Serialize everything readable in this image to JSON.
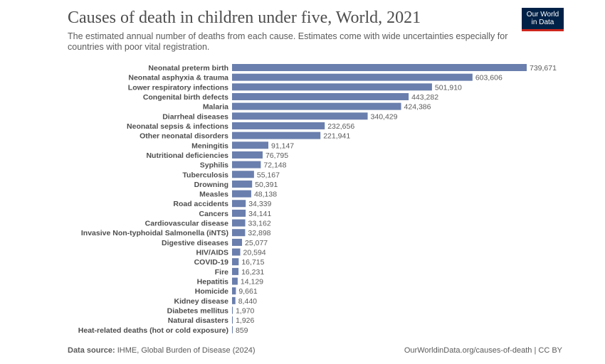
{
  "header": {
    "title": "Causes of death in children under five, World, 2021",
    "subtitle": "The estimated annual number of deaths from each cause. Estimates come with wide uncertainties especially for countries with poor vital registration.",
    "logo_line1": "Our World",
    "logo_line2": "in Data"
  },
  "footer": {
    "source_label": "Data source:",
    "source_text": "IHME, Global Burden of Disease (2024)",
    "link_text": "OurWorldinData.org/causes-of-death | CC BY"
  },
  "colors": {
    "bar": "#6a7fad",
    "logo_bg": "#002147",
    "logo_accent": "#ce261e"
  },
  "chart_data": {
    "type": "bar",
    "orientation": "horizontal",
    "title": "Causes of death in children under five, World, 2021",
    "xlim": [
      0,
      739671
    ],
    "categories": [
      "Neonatal preterm birth",
      "Neonatal asphyxia & trauma",
      "Lower respiratory infections",
      "Congenital birth defects",
      "Malaria",
      "Diarrheal diseases",
      "Neonatal sepsis & infections",
      "Other neonatal disorders",
      "Meningitis",
      "Nutritional deficiencies",
      "Syphilis",
      "Tuberculosis",
      "Drowning",
      "Measles",
      "Road accidents",
      "Cancers",
      "Cardiovascular disease",
      "Invasive Non-typhoidal Salmonella (iNTS)",
      "Digestive diseases",
      "HIV/AIDS",
      "COVID-19",
      "Fire",
      "Hepatitis",
      "Homicide",
      "Kidney disease",
      "Diabetes mellitus",
      "Natural disasters",
      "Heat-related deaths (hot or cold exposure)"
    ],
    "values": [
      739671,
      603606,
      501910,
      443282,
      424386,
      340429,
      232656,
      221941,
      91147,
      76795,
      72148,
      55167,
      50391,
      48138,
      34339,
      34141,
      33162,
      32898,
      25077,
      20594,
      16715,
      16231,
      14129,
      9661,
      8440,
      1970,
      1926,
      859
    ],
    "value_labels": [
      "739,671",
      "603,606",
      "501,910",
      "443,282",
      "424,386",
      "340,429",
      "232,656",
      "221,941",
      "91,147",
      "76,795",
      "72,148",
      "55,167",
      "50,391",
      "48,138",
      "34,339",
      "34,141",
      "33,162",
      "32,898",
      "25,077",
      "20,594",
      "16,715",
      "16,231",
      "14,129",
      "9,661",
      "8,440",
      "1,970",
      "1,926",
      "859"
    ],
    "grid": false,
    "legend": "none"
  }
}
